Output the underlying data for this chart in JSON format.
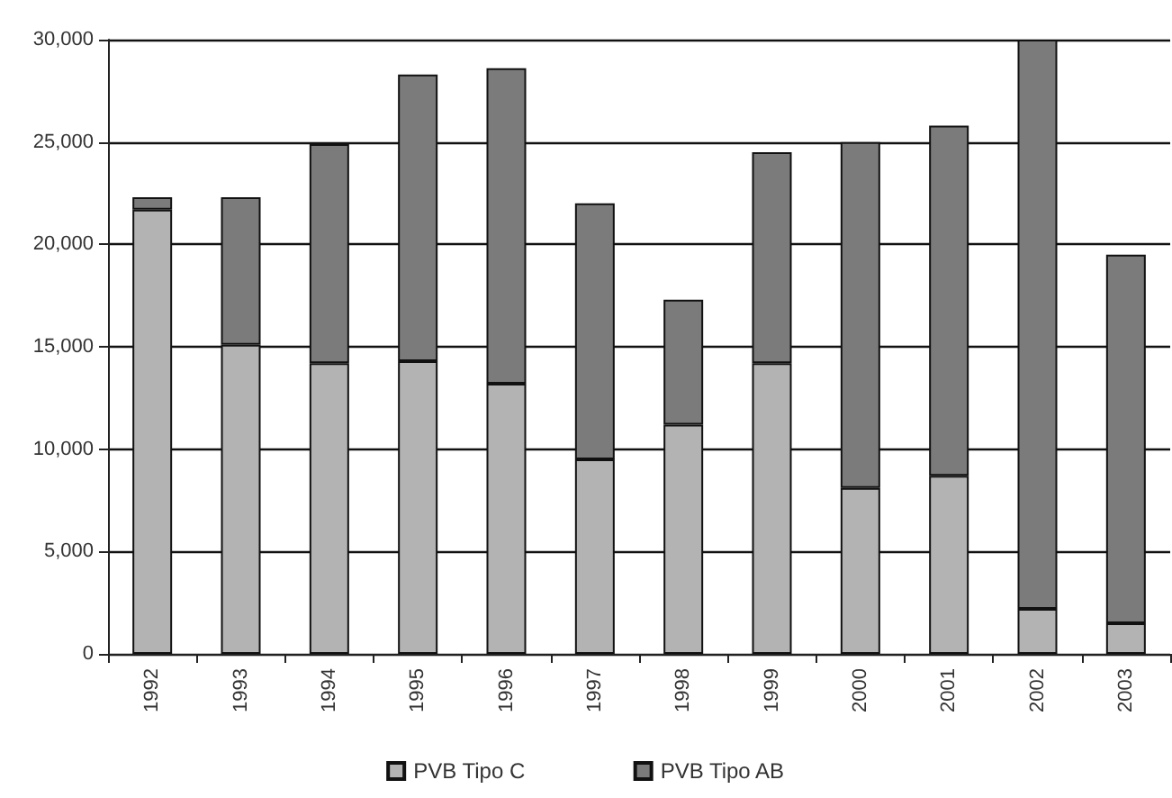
{
  "chart_data": {
    "type": "bar",
    "stacked": true,
    "categories": [
      "1992",
      "1993",
      "1994",
      "1995",
      "1996",
      "1997",
      "1998",
      "1999",
      "2000",
      "2001",
      "2002",
      "2003"
    ],
    "series": [
      {
        "name": "PVB Tipo C",
        "color": "#b3b3b3",
        "values": [
          21700,
          15100,
          14200,
          14300,
          13200,
          9500,
          11200,
          14200,
          8100,
          8700,
          2200,
          1500
        ]
      },
      {
        "name": "PVB Tipo AB",
        "color": "#7b7b7b",
        "values": [
          600,
          7200,
          10700,
          14000,
          15400,
          12500,
          6100,
          10300,
          16900,
          17100,
          27800,
          18000
        ]
      }
    ],
    "ylim": [
      0,
      30000
    ],
    "yticks": [
      0,
      {
        "value": 5000,
        "label": "5,000"
      },
      {
        "value": 10000,
        "label": "10,000"
      },
      {
        "value": 15000,
        "label": "15,000"
      },
      {
        "value": 20000,
        "label": "20,000"
      },
      {
        "value": 25000,
        "label": "25,000"
      },
      {
        "value": 30000,
        "label": "30,000"
      }
    ],
    "grid": "y",
    "legend": "bottom"
  }
}
